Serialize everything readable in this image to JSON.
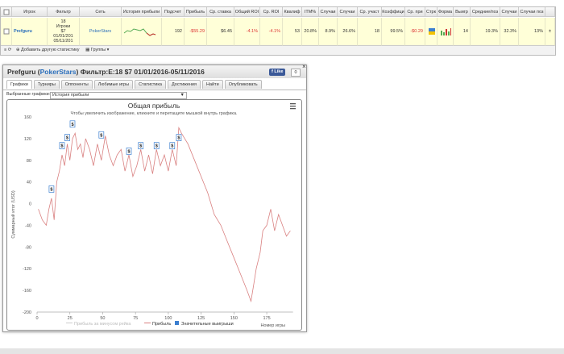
{
  "table": {
    "headers": [
      "Игрок",
      "Фильтр",
      "Сеть",
      "История прибыли",
      "Подсчет",
      "Прибыль",
      "Ср. ставка",
      "Общий ROI",
      "Ср. ROI",
      "Квалиф",
      "ITM%",
      "Случаи",
      "Случаи",
      "Ср. участ",
      "Коэффици",
      "Ср. при",
      "Стрк",
      "Форма",
      "Выигр",
      "Средние/поз",
      "Случаи",
      "Случаи поз"
    ],
    "row": [
      "Prefguru",
      "18\nИгроки\n$7\n01/01/201\n05/11/201",
      "PokerStars",
      null,
      192,
      "-$55.29",
      "$6.45",
      "-4.1%",
      "-4.1%",
      53,
      "20.8%",
      "8.9%",
      "26.6%",
      18,
      "99.5%",
      "-$0.29",
      null,
      null,
      14,
      "19.3%",
      "32.3%",
      "13%"
    ],
    "footer": [
      "Добавить другую статистику",
      "Группы"
    ]
  },
  "panel": {
    "title": [
      "Prefguru (",
      "PokerStars",
      ") Фильтр:E:18 $7 01/01/2016-05/11/2016"
    ],
    "like": "Like",
    "like_count": 0,
    "tabs": [
      "Графики",
      "Турниры",
      "Оппоненты",
      "Любимые игры",
      "Статистика",
      "Достижения",
      "Найти",
      "Опубликовать"
    ],
    "select_label": "Выбранные графики:",
    "select_value": "История прибыли"
  },
  "chart_data": {
    "type": "line",
    "title": "Общая прибыль",
    "subtitle": "Чтобы увеличить изображение, кликните и перетащите мышкой внутрь графика.",
    "y_label": "Суммарный итог (USD)",
    "x_label": "Номер игры",
    "xlim": [
      0,
      195
    ],
    "ylim": [
      -200,
      160
    ],
    "xticks": [
      0,
      25,
      50,
      75,
      100,
      125,
      150,
      175
    ],
    "yticks": [
      -200,
      -160,
      -120,
      -80,
      -40,
      0,
      40,
      80,
      120,
      160
    ],
    "grid": false,
    "series": [
      {
        "name": "Прибыль за минусом рейка",
        "color": "#cccccc",
        "visible": false
      },
      {
        "name": "Прибыль",
        "color": "#d98080",
        "x": [
          1,
          4,
          7,
          9,
          11,
          13,
          15,
          17,
          19,
          21,
          23,
          25,
          27,
          29,
          31,
          33,
          35,
          37,
          40,
          43,
          46,
          49,
          52,
          55,
          58,
          61,
          64,
          67,
          70,
          73,
          76,
          79,
          82,
          85,
          88,
          91,
          94,
          97,
          100,
          103,
          106,
          108,
          110,
          115,
          120,
          125,
          130,
          135,
          140,
          145,
          150,
          155,
          160,
          163,
          165,
          167,
          170,
          172,
          175,
          178,
          181,
          184,
          187,
          190,
          193
        ],
        "values": [
          -10,
          -30,
          -40,
          -10,
          10,
          -30,
          40,
          60,
          90,
          70,
          110,
          80,
          120,
          130,
          100,
          110,
          85,
          120,
          100,
          70,
          110,
          80,
          125,
          90,
          70,
          90,
          100,
          60,
          90,
          50,
          70,
          100,
          60,
          90,
          55,
          100,
          70,
          90,
          60,
          100,
          70,
          140,
          130,
          110,
          80,
          50,
          20,
          -20,
          -40,
          -70,
          -100,
          -130,
          -160,
          -180,
          -150,
          -120,
          -90,
          -50,
          -40,
          -10,
          -50,
          -20,
          -40,
          -60,
          -50
        ]
      },
      {
        "name": "Значительные выигрыши",
        "color": "#3b7fd0",
        "type": "flag",
        "marker_label": "$",
        "x": [
          11,
          19,
          23,
          27,
          49,
          70,
          79,
          91,
          103,
          108
        ],
        "values": [
          15,
          95,
          110,
          135,
          115,
          85,
          95,
          95,
          95,
          110
        ]
      }
    ]
  }
}
